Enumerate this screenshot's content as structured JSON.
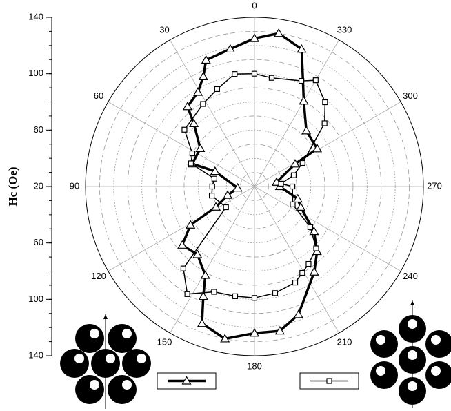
{
  "chart_data": {
    "type": "polar",
    "rlabel": "Hc (Oe)",
    "rlim": [
      20,
      140
    ],
    "rticks": [
      20,
      60,
      100,
      140
    ],
    "rgrid": [
      30,
      40,
      50,
      60,
      70,
      80,
      90,
      100,
      110,
      120,
      130
    ],
    "thetaticks": [
      0,
      30,
      60,
      90,
      120,
      150,
      180,
      210,
      240,
      270,
      300,
      330
    ],
    "direction": "counterclockwise",
    "zero": "top",
    "series": [
      {
        "marker": "triangle",
        "color": "#000000",
        "theta": [
          0,
          10,
          21,
          25,
          31,
          40,
          44,
          55,
          70,
          69,
          95,
          108,
          118,
          121,
          129,
          140,
          151,
          155,
          159,
          169,
          180,
          190,
          199,
          215,
          224,
          233,
          246,
          254,
          270,
          281,
          299,
          301,
          317,
          330,
          341,
          351
        ],
        "r": [
          125,
          119,
          116,
          106,
          98,
          94,
          82,
          67,
          67,
          50,
          32,
          40,
          51,
          73,
          86,
          83,
          92,
          106,
          124,
          130,
          124,
          124,
          116,
          94,
          84,
          73,
          56,
          52,
          38,
          36,
          53,
          72,
          74,
          90,
          123,
          130
        ]
      },
      {
        "marker": "square",
        "color": "#000000",
        "theta": [
          0,
          10,
          21,
          32,
          51,
          62,
          70,
          79,
          90,
          102,
          126,
          139,
          148,
          159,
          170,
          180,
          191,
          203,
          209,
          215,
          225,
          234,
          245,
          270,
          276,
          286,
          296,
          312,
          320,
          330,
          336,
          351
        ],
        "r": [
          100,
          101,
          94,
          89,
          84,
          70,
          68,
          49,
          50,
          51,
          45,
          97,
          110,
          100,
          99,
          99,
          97,
          94,
          90,
          87,
          82,
          69,
          50,
          47,
          39,
          49,
          58,
          87,
          98,
          107,
          102,
          98
        ]
      }
    ]
  }
}
